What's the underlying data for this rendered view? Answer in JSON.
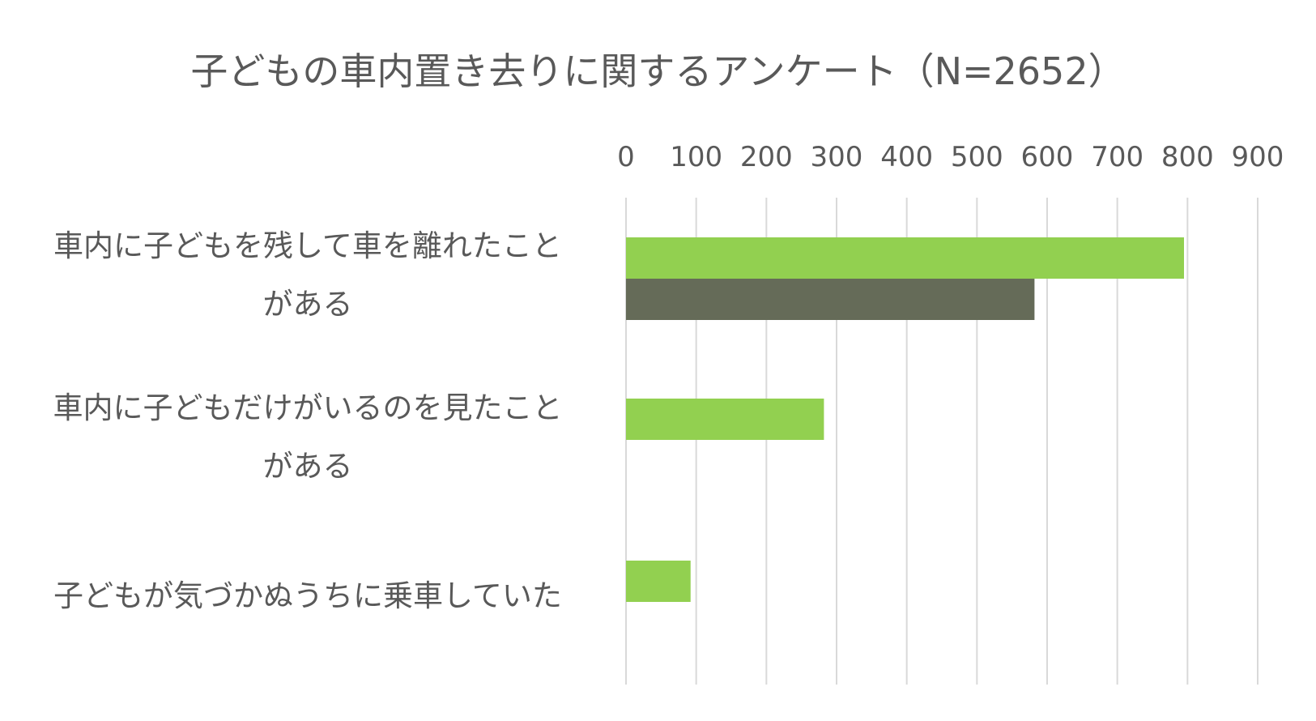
{
  "chart_data": {
    "type": "bar",
    "orientation": "horizontal",
    "title": "子どもの車内置き去りに関するアンケート（N=2652）",
    "xlim": [
      0,
      900
    ],
    "xticks": [
      0,
      100,
      200,
      300,
      400,
      500,
      600,
      700,
      800,
      900
    ],
    "x_axis_position": "top",
    "grid": "vertical",
    "legend": "none",
    "categories": [
      [
        "車内に子どもを残して車を離れたこと",
        "がある"
      ],
      [
        "車内に子どもだけがいるのを見たこと",
        "がある"
      ],
      [
        "子どもが気づかぬうちに乗車していた"
      ]
    ],
    "series": [
      {
        "color": "#92d050",
        "values": [
          795,
          282,
          92
        ]
      },
      {
        "color": "#656b58",
        "values": [
          582,
          null,
          null
        ]
      }
    ],
    "gridline_color": "#d9d9d9",
    "text_color": "#595959"
  }
}
